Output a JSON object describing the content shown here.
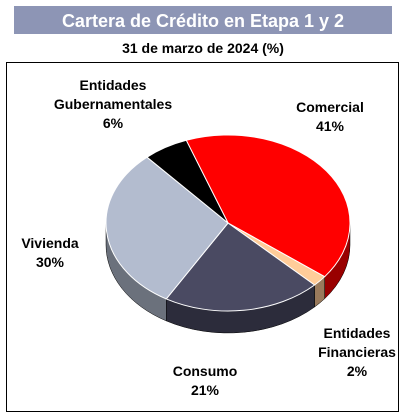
{
  "chart_data": {
    "type": "pie",
    "title": "Cartera de Crédito en Etapa 1 y 2",
    "subtitle": "31 de marzo de 2024 (%)",
    "categories": [
      "Comercial",
      "Entidades Financieras",
      "Consumo",
      "Vivienda",
      "Entidades Gubernamentales"
    ],
    "values": [
      41,
      2,
      21,
      30,
      6
    ],
    "value_labels": [
      "41%",
      "2%",
      "21%",
      "30%",
      "6%"
    ],
    "colors": [
      "#ff0000",
      "#ffcc99",
      "#4a4a62",
      "#b3bccf",
      "#000000"
    ]
  }
}
